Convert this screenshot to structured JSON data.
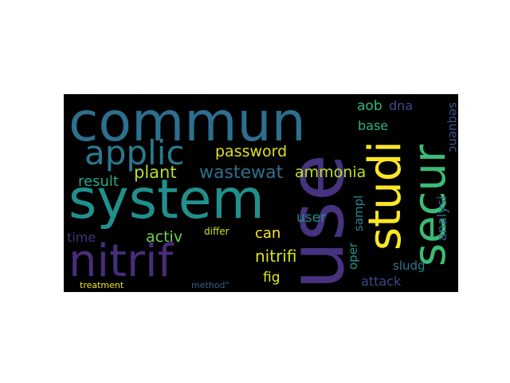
{
  "wordcloud": {
    "words": [
      {
        "text": "commun",
        "color": "#2c6f8e"
      },
      {
        "text": "use",
        "color": "#46327e"
      },
      {
        "text": "system",
        "color": "#21908d"
      },
      {
        "text": "nitrif",
        "color": "#472d7b"
      },
      {
        "text": "applic",
        "color": "#2a788e"
      },
      {
        "text": "studi",
        "color": "#fde725"
      },
      {
        "text": "secur",
        "color": "#3bbb75"
      },
      {
        "text": "wastewat",
        "color": "#2d708e"
      },
      {
        "text": "plant",
        "color": "#b5de2b"
      },
      {
        "text": "password",
        "color": "#dce319"
      },
      {
        "text": "ammonia",
        "color": "#bddf26"
      },
      {
        "text": "nitrifi",
        "color": "#d8e219"
      },
      {
        "text": "result",
        "color": "#22a884"
      },
      {
        "text": "activ",
        "color": "#6ece58"
      },
      {
        "text": "can",
        "color": "#fde725"
      },
      {
        "text": "fig",
        "color": "#e5e419"
      },
      {
        "text": "user",
        "color": "#228d8d"
      },
      {
        "text": "time",
        "color": "#46337e"
      },
      {
        "text": "aob",
        "color": "#35b779"
      },
      {
        "text": "dna",
        "color": "#3e4a89"
      },
      {
        "text": "base",
        "color": "#2fb47c"
      },
      {
        "text": "sequenc",
        "color": "#3a538b"
      },
      {
        "text": "analysi",
        "color": "#31688e"
      },
      {
        "text": "sampl",
        "color": "#25858e"
      },
      {
        "text": "oper",
        "color": "#1f968b"
      },
      {
        "text": "attack",
        "color": "#3e4989"
      },
      {
        "text": "sludg",
        "color": "#287c8e"
      },
      {
        "text": "differ",
        "color": "#d0e11c"
      },
      {
        "text": "treatment",
        "color": "#f1e51d"
      },
      {
        "text": "method\"",
        "color": "#33638d"
      }
    ]
  }
}
